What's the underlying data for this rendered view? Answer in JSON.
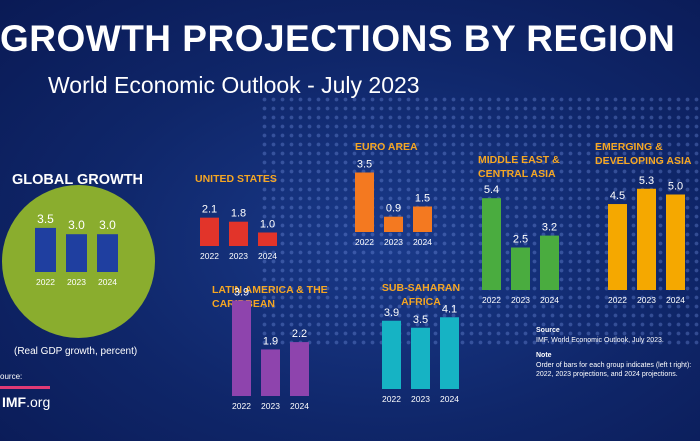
{
  "header": {
    "title": "GROWTH PROJECTIONS BY REGION",
    "subtitle": "World Economic Outlook - July 2023"
  },
  "global": {
    "title": "GLOBAL GROWTH",
    "note": "(Real GDP growth, percent)"
  },
  "footer": {
    "source_label": "ource:",
    "logo_bold": "IMF",
    "logo_rest": ".org"
  },
  "notes": {
    "source_heading": "Source",
    "source_text": "IMF, World Economic Outlook, July 2023.",
    "note_heading": "Note",
    "note_text": "Order of bars for each group indicates (left t right): 2022, 2023 projections, and 2024 projections."
  },
  "colors": {
    "global": "#1f3fa0",
    "united_states": "#e2342a",
    "euro_area": "#f47920",
    "middle_east": "#4aac3f",
    "emerging_asia": "#f5a800",
    "latin_america": "#8e44ad",
    "sub_saharan": "#16b3c4",
    "panel_title": "#f5a623",
    "circle": "#8aad2e"
  },
  "chart_data": [
    {
      "id": "global",
      "type": "bar",
      "title": "GLOBAL GROWTH",
      "categories": [
        "2022",
        "2023",
        "2024"
      ],
      "values": [
        3.5,
        3.0,
        3.0
      ],
      "labels": [
        "3.5",
        "3.0",
        "3.0"
      ],
      "color": "#1f3fa0"
    },
    {
      "id": "united_states",
      "type": "bar",
      "title": "UNITED STATES",
      "categories": [
        "2022",
        "2023",
        "2024"
      ],
      "values": [
        2.1,
        1.8,
        1.0
      ],
      "labels": [
        "2.1",
        "1.8",
        "1.0"
      ],
      "color": "#e2342a"
    },
    {
      "id": "euro_area",
      "type": "bar",
      "title": "EURO AREA",
      "categories": [
        "2022",
        "2023",
        "2024"
      ],
      "values": [
        3.5,
        0.9,
        1.5
      ],
      "labels": [
        "3.5",
        "0.9",
        "1.5"
      ],
      "color": "#f47920"
    },
    {
      "id": "middle_east",
      "type": "bar",
      "title": "MIDDLE EAST & CENTRAL ASIA",
      "title_lines": [
        "MIDDLE EAST &",
        "CENTRAL ASIA"
      ],
      "categories": [
        "2022",
        "2023",
        "2024"
      ],
      "values": [
        5.4,
        2.5,
        3.2
      ],
      "labels": [
        "5.4",
        "2.5",
        "3.2"
      ],
      "color": "#4aac3f"
    },
    {
      "id": "emerging_asia",
      "type": "bar",
      "title": "EMERGING & DEVELOPING ASIA",
      "title_lines": [
        "EMERGING &",
        "DEVELOPING ASIA"
      ],
      "categories": [
        "2022",
        "2023",
        "2024"
      ],
      "values": [
        4.5,
        5.3,
        5.0
      ],
      "labels": [
        "4.5",
        "5.3",
        "5.0"
      ],
      "color": "#f5a800"
    },
    {
      "id": "latin_america",
      "type": "bar",
      "title": "LATIN AMERICA & THE CARIBBEAN",
      "title_lines": [
        "LATIN AMERICA & THE",
        "CARIBBEAN"
      ],
      "categories": [
        "2022",
        "2023",
        "2024"
      ],
      "values": [
        3.9,
        1.9,
        2.2
      ],
      "labels": [
        "3.9",
        "1.9",
        "2.2"
      ],
      "color": "#8e44ad"
    },
    {
      "id": "sub_saharan",
      "type": "bar",
      "title": "SUB-SAHARAN AFRICA",
      "title_lines": [
        "SUB-SAHARAN",
        "AFRICA"
      ],
      "categories": [
        "2022",
        "2023",
        "2024"
      ],
      "values": [
        3.9,
        3.5,
        4.1
      ],
      "labels": [
        "3.9",
        "3.5",
        "4.1"
      ],
      "color": "#16b3c4"
    }
  ]
}
